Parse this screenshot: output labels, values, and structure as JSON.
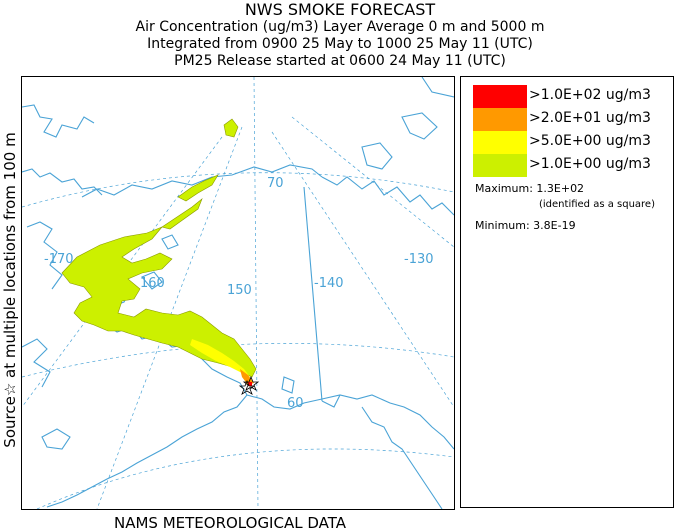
{
  "header": {
    "title": "NWS SMOKE FORECAST",
    "line2": "Air Concentration (ug/m3) Layer Average    0 m and  5000 m",
    "line3": "Integrated from 0900 25 May to 1000 25 May 11 (UTC)",
    "line4": "PM25 Release started at 0600 24 May 11 (UTC)"
  },
  "side_label": "Source☆ at multiple locations from   100 m",
  "footer": "NAMS METEOROLOGICAL DATA",
  "map": {
    "graticule_labels": {
      "lon_170": "-170",
      "lon_160": "160",
      "lon_150": "150",
      "lon_140": "-140",
      "lon_130": "-130",
      "lat_70": "70",
      "lat_60": "60"
    },
    "colors": {
      "land_outline": "#4aa3d6",
      "grid": "#4aa3d6",
      "plume_low": "#ccf000",
      "plume_mid": "#ffff00",
      "plume_high": "#ff9900",
      "plume_max": "#ff0000"
    }
  },
  "legend": {
    "entries": [
      {
        "label": ">1.0E+02 ug/m3",
        "color": "#ff0000"
      },
      {
        "label": ">2.0E+01 ug/m3",
        "color": "#ff9900"
      },
      {
        "label": ">5.0E+00 ug/m3",
        "color": "#ffff00"
      },
      {
        "label": ">1.0E+00 ug/m3",
        "color": "#ccf000"
      }
    ],
    "maximum": "Maximum: 1.3E+02",
    "maximum_note": "(identified as a square)",
    "minimum": "Minimum: 3.8E-19"
  }
}
